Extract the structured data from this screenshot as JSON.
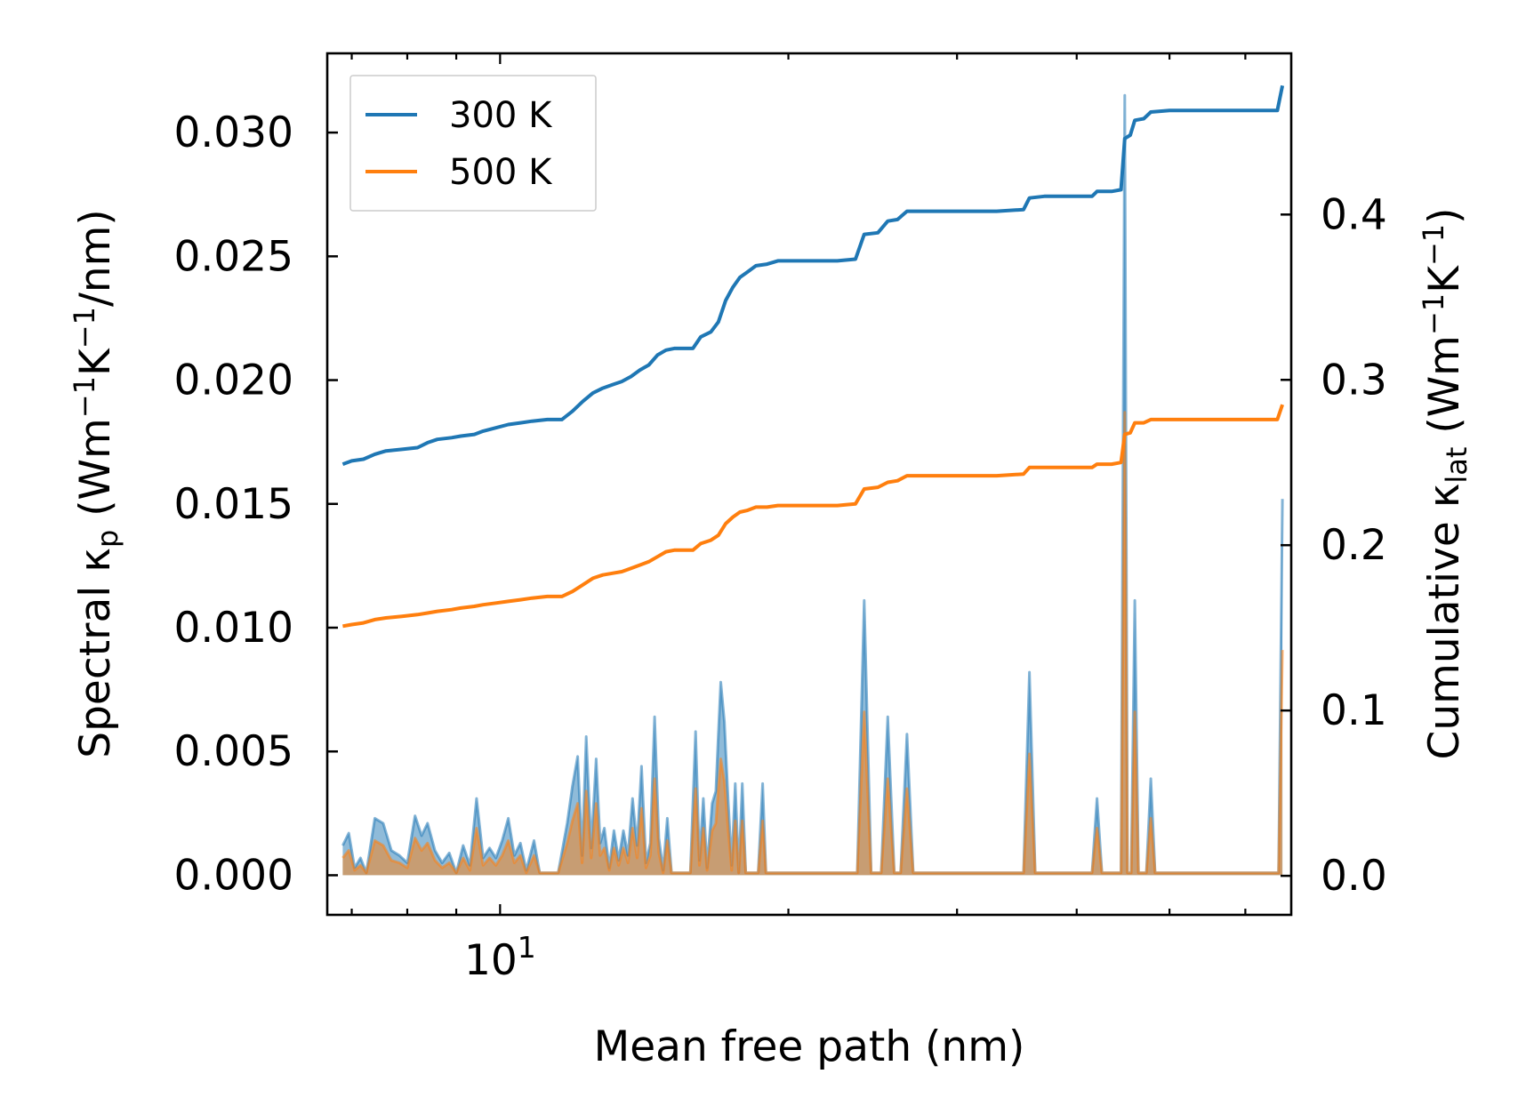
{
  "chart_data": {
    "type": "line",
    "xscale": "log",
    "xlim": [
      6.6,
      67
    ],
    "ylim": [
      -0.0016,
      0.0332
    ],
    "y2lim": [
      -0.0236,
      0.4975
    ],
    "xlabel": "Mean free path (nm)",
    "ylabel_parts": {
      "pre": "Spectral κ",
      "sub": "p",
      "mid": " (Wm",
      "sup1": "−1",
      "k": "K",
      "sup2": "−1",
      "post": "/nm)"
    },
    "y2label_parts": {
      "pre": "Cumulative κ",
      "sub": "lat",
      "mid": " (Wm",
      "sup1": "−1",
      "k": "K",
      "sup2": "−1",
      "post": ")"
    },
    "xtick_labels": [
      {
        "base": "10",
        "exp": "1",
        "value": 10
      }
    ],
    "yticks": [
      {
        "value": 0.0,
        "label": "0.000"
      },
      {
        "value": 0.005,
        "label": "0.005"
      },
      {
        "value": 0.01,
        "label": "0.010"
      },
      {
        "value": 0.015,
        "label": "0.015"
      },
      {
        "value": 0.02,
        "label": "0.020"
      },
      {
        "value": 0.025,
        "label": "0.025"
      },
      {
        "value": 0.03,
        "label": "0.030"
      }
    ],
    "y2ticks": [
      {
        "value": 0.0,
        "label": "0.0"
      },
      {
        "value": 0.1,
        "label": "0.1"
      },
      {
        "value": 0.2,
        "label": "0.2"
      },
      {
        "value": 0.3,
        "label": "0.3"
      },
      {
        "value": 0.4,
        "label": "0.4"
      }
    ],
    "legend": {
      "location": "upper-left",
      "entries": [
        {
          "label": "300 K",
          "color": "#1f77b4"
        },
        {
          "label": "500 K",
          "color": "#ff7f0e"
        }
      ]
    },
    "spectral_300K": [
      [
        6.85,
        0.0012
      ],
      [
        6.95,
        0.0017
      ],
      [
        7.05,
        0.0003
      ],
      [
        7.15,
        0.0007
      ],
      [
        7.25,
        0.0001
      ],
      [
        7.4,
        0.0023
      ],
      [
        7.55,
        0.0021
      ],
      [
        7.7,
        0.001
      ],
      [
        7.85,
        0.0008
      ],
      [
        8.0,
        0.0005
      ],
      [
        8.15,
        0.0024
      ],
      [
        8.28,
        0.0016
      ],
      [
        8.4,
        0.0021
      ],
      [
        8.55,
        0.001
      ],
      [
        8.7,
        0.0005
      ],
      [
        8.85,
        0.0009
      ],
      [
        9.0,
        0.0001
      ],
      [
        9.15,
        0.0012
      ],
      [
        9.3,
        0.0004
      ],
      [
        9.45,
        0.0031
      ],
      [
        9.6,
        0.0007
      ],
      [
        9.75,
        0.0011
      ],
      [
        9.9,
        0.0007
      ],
      [
        10.05,
        0.0014
      ],
      [
        10.2,
        0.0023
      ],
      [
        10.35,
        0.0008
      ],
      [
        10.5,
        0.0013
      ],
      [
        10.65,
        0.0002
      ],
      [
        10.85,
        0.0014
      ],
      [
        11.0,
        0.0001
      ],
      [
        11.5,
        0.0001
      ],
      [
        11.75,
        0.0021
      ],
      [
        11.9,
        0.0036
      ],
      [
        12.05,
        0.0048
      ],
      [
        12.18,
        0.0008
      ],
      [
        12.3,
        0.0056
      ],
      [
        12.45,
        0.0011
      ],
      [
        12.6,
        0.0047
      ],
      [
        12.72,
        0.0013
      ],
      [
        12.85,
        0.0019
      ],
      [
        13.0,
        0.0003
      ],
      [
        13.15,
        0.0018
      ],
      [
        13.3,
        0.0006
      ],
      [
        13.45,
        0.0018
      ],
      [
        13.6,
        0.0008
      ],
      [
        13.75,
        0.0031
      ],
      [
        13.9,
        0.0012
      ],
      [
        14.05,
        0.0044
      ],
      [
        14.2,
        0.0005
      ],
      [
        14.35,
        0.0013
      ],
      [
        14.5,
        0.0064
      ],
      [
        14.65,
        0.0015
      ],
      [
        14.8,
        0.0002
      ],
      [
        14.95,
        0.0023
      ],
      [
        15.1,
        0.0001
      ],
      [
        15.8,
        0.0001
      ],
      [
        16.0,
        0.0058
      ],
      [
        16.15,
        0.0006
      ],
      [
        16.3,
        0.0031
      ],
      [
        16.45,
        0.0003
      ],
      [
        16.65,
        0.0029
      ],
      [
        16.8,
        0.0034
      ],
      [
        16.9,
        0.0057
      ],
      [
        17.0,
        0.0078
      ],
      [
        17.15,
        0.0062
      ],
      [
        17.3,
        0.0031
      ],
      [
        17.45,
        0.0004
      ],
      [
        17.6,
        0.0037
      ],
      [
        17.75,
        0.0001
      ],
      [
        17.9,
        0.0037
      ],
      [
        18.05,
        0.0001
      ],
      [
        18.6,
        0.0001
      ],
      [
        18.8,
        0.0037
      ],
      [
        18.95,
        0.0001
      ],
      [
        23.6,
        0.0001
      ],
      [
        24.0,
        0.0111
      ],
      [
        24.4,
        0.0001
      ],
      [
        25.0,
        0.0001
      ],
      [
        25.4,
        0.0064
      ],
      [
        25.8,
        0.0001
      ],
      [
        26.2,
        0.0001
      ],
      [
        26.6,
        0.0057
      ],
      [
        27.0,
        0.0001
      ],
      [
        35.2,
        0.0001
      ],
      [
        35.7,
        0.0082
      ],
      [
        36.2,
        0.0001
      ],
      [
        41.5,
        0.0001
      ],
      [
        42.0,
        0.0031
      ],
      [
        42.5,
        0.0001
      ],
      [
        44.5,
        0.0001
      ],
      [
        44.9,
        0.0315
      ],
      [
        45.2,
        0.0001
      ],
      [
        45.6,
        0.0001
      ],
      [
        46.0,
        0.0111
      ],
      [
        46.4,
        0.0001
      ],
      [
        47.3,
        0.0001
      ],
      [
        47.8,
        0.0039
      ],
      [
        48.3,
        0.0001
      ],
      [
        65.0,
        0.0001
      ],
      [
        65.6,
        0.0152
      ]
    ],
    "spectral_500K": [
      [
        6.85,
        0.0007
      ],
      [
        6.95,
        0.001
      ],
      [
        7.05,
        0.0002
      ],
      [
        7.15,
        0.0004
      ],
      [
        7.25,
        0.0001
      ],
      [
        7.4,
        0.0014
      ],
      [
        7.55,
        0.0012
      ],
      [
        7.7,
        0.0006
      ],
      [
        7.85,
        0.0005
      ],
      [
        8.0,
        0.0003
      ],
      [
        8.15,
        0.0015
      ],
      [
        8.28,
        0.001
      ],
      [
        8.4,
        0.0013
      ],
      [
        8.55,
        0.0006
      ],
      [
        8.7,
        0.0003
      ],
      [
        8.85,
        0.0005
      ],
      [
        9.0,
        0.0001
      ],
      [
        9.15,
        0.0007
      ],
      [
        9.3,
        0.0002
      ],
      [
        9.45,
        0.0019
      ],
      [
        9.6,
        0.0004
      ],
      [
        9.75,
        0.0007
      ],
      [
        9.9,
        0.0004
      ],
      [
        10.05,
        0.0008
      ],
      [
        10.2,
        0.0014
      ],
      [
        10.35,
        0.0005
      ],
      [
        10.5,
        0.0008
      ],
      [
        10.65,
        0.0001
      ],
      [
        10.85,
        0.0008
      ],
      [
        11.0,
        0.0001
      ],
      [
        11.5,
        0.0001
      ],
      [
        11.75,
        0.0013
      ],
      [
        11.9,
        0.0022
      ],
      [
        12.05,
        0.0029
      ],
      [
        12.18,
        0.0005
      ],
      [
        12.3,
        0.0034
      ],
      [
        12.45,
        0.0007
      ],
      [
        12.6,
        0.0029
      ],
      [
        12.72,
        0.0008
      ],
      [
        12.85,
        0.0011
      ],
      [
        13.0,
        0.0002
      ],
      [
        13.15,
        0.0011
      ],
      [
        13.3,
        0.0004
      ],
      [
        13.45,
        0.0011
      ],
      [
        13.6,
        0.0005
      ],
      [
        13.75,
        0.0019
      ],
      [
        13.9,
        0.0007
      ],
      [
        14.05,
        0.0027
      ],
      [
        14.2,
        0.0003
      ],
      [
        14.35,
        0.0008
      ],
      [
        14.5,
        0.0039
      ],
      [
        14.65,
        0.0009
      ],
      [
        14.8,
        0.0001
      ],
      [
        14.95,
        0.0014
      ],
      [
        15.1,
        0.0001
      ],
      [
        15.8,
        0.0001
      ],
      [
        16.0,
        0.0035
      ],
      [
        16.15,
        0.0004
      ],
      [
        16.3,
        0.0019
      ],
      [
        16.45,
        0.0002
      ],
      [
        16.65,
        0.0018
      ],
      [
        16.8,
        0.0021
      ],
      [
        16.9,
        0.0035
      ],
      [
        17.0,
        0.0047
      ],
      [
        17.15,
        0.0038
      ],
      [
        17.3,
        0.0019
      ],
      [
        17.45,
        0.0002
      ],
      [
        17.6,
        0.0022
      ],
      [
        17.75,
        0.0001
      ],
      [
        17.9,
        0.0022
      ],
      [
        18.05,
        0.0001
      ],
      [
        18.6,
        0.0001
      ],
      [
        18.8,
        0.0022
      ],
      [
        18.95,
        0.0001
      ],
      [
        23.6,
        0.0001
      ],
      [
        24.0,
        0.0066
      ],
      [
        24.4,
        0.0001
      ],
      [
        25.0,
        0.0001
      ],
      [
        25.4,
        0.0039
      ],
      [
        25.8,
        0.0001
      ],
      [
        26.2,
        0.0001
      ],
      [
        26.6,
        0.0035
      ],
      [
        27.0,
        0.0001
      ],
      [
        35.2,
        0.0001
      ],
      [
        35.7,
        0.0049
      ],
      [
        36.2,
        0.0001
      ],
      [
        41.5,
        0.0001
      ],
      [
        42.0,
        0.0019
      ],
      [
        42.5,
        0.0001
      ],
      [
        44.5,
        0.0001
      ],
      [
        44.9,
        0.0187
      ],
      [
        45.2,
        0.0001
      ],
      [
        45.6,
        0.0001
      ],
      [
        46.0,
        0.0066
      ],
      [
        46.4,
        0.0001
      ],
      [
        47.3,
        0.0001
      ],
      [
        47.8,
        0.0023
      ],
      [
        48.3,
        0.0001
      ],
      [
        65.0,
        0.0001
      ],
      [
        65.6,
        0.0091
      ]
    ],
    "cumulative_300K": [
      [
        6.85,
        0.249
      ],
      [
        7.0,
        0.251
      ],
      [
        7.2,
        0.252
      ],
      [
        7.4,
        0.255
      ],
      [
        7.6,
        0.257
      ],
      [
        7.9,
        0.258
      ],
      [
        8.2,
        0.259
      ],
      [
        8.4,
        0.262
      ],
      [
        8.6,
        0.264
      ],
      [
        8.9,
        0.265
      ],
      [
        9.1,
        0.266
      ],
      [
        9.4,
        0.267
      ],
      [
        9.6,
        0.269
      ],
      [
        9.9,
        0.271
      ],
      [
        10.2,
        0.273
      ],
      [
        10.5,
        0.274
      ],
      [
        10.8,
        0.275
      ],
      [
        11.2,
        0.276
      ],
      [
        11.6,
        0.276
      ],
      [
        11.9,
        0.281
      ],
      [
        12.2,
        0.287
      ],
      [
        12.5,
        0.292
      ],
      [
        12.8,
        0.295
      ],
      [
        13.1,
        0.297
      ],
      [
        13.4,
        0.299
      ],
      [
        13.7,
        0.302
      ],
      [
        14.0,
        0.306
      ],
      [
        14.3,
        0.309
      ],
      [
        14.6,
        0.315
      ],
      [
        14.9,
        0.318
      ],
      [
        15.2,
        0.319
      ],
      [
        15.6,
        0.319
      ],
      [
        15.9,
        0.319
      ],
      [
        16.2,
        0.326
      ],
      [
        16.6,
        0.329
      ],
      [
        16.9,
        0.335
      ],
      [
        17.2,
        0.348
      ],
      [
        17.5,
        0.356
      ],
      [
        17.8,
        0.362
      ],
      [
        18.1,
        0.365
      ],
      [
        18.5,
        0.369
      ],
      [
        19.0,
        0.37
      ],
      [
        19.5,
        0.372
      ],
      [
        20.5,
        0.372
      ],
      [
        21.5,
        0.372
      ],
      [
        22.5,
        0.372
      ],
      [
        23.5,
        0.373
      ],
      [
        24.0,
        0.388
      ],
      [
        24.8,
        0.389
      ],
      [
        25.4,
        0.396
      ],
      [
        26.0,
        0.397
      ],
      [
        26.6,
        0.402
      ],
      [
        28.0,
        0.402
      ],
      [
        30.0,
        0.402
      ],
      [
        33.0,
        0.402
      ],
      [
        35.2,
        0.403
      ],
      [
        35.7,
        0.41
      ],
      [
        37.0,
        0.411
      ],
      [
        39.0,
        0.411
      ],
      [
        41.5,
        0.411
      ],
      [
        42.0,
        0.414
      ],
      [
        43.5,
        0.414
      ],
      [
        44.5,
        0.415
      ],
      [
        44.9,
        0.446
      ],
      [
        45.5,
        0.448
      ],
      [
        46.0,
        0.457
      ],
      [
        47.0,
        0.458
      ],
      [
        47.8,
        0.462
      ],
      [
        50.0,
        0.463
      ],
      [
        55.0,
        0.463
      ],
      [
        60.0,
        0.463
      ],
      [
        64.8,
        0.463
      ],
      [
        65.6,
        0.478
      ]
    ],
    "cumulative_500K": [
      [
        6.85,
        0.151
      ],
      [
        7.0,
        0.152
      ],
      [
        7.2,
        0.153
      ],
      [
        7.4,
        0.155
      ],
      [
        7.6,
        0.156
      ],
      [
        7.9,
        0.157
      ],
      [
        8.2,
        0.158
      ],
      [
        8.4,
        0.159
      ],
      [
        8.6,
        0.16
      ],
      [
        8.9,
        0.161
      ],
      [
        9.1,
        0.162
      ],
      [
        9.4,
        0.163
      ],
      [
        9.6,
        0.164
      ],
      [
        9.9,
        0.165
      ],
      [
        10.2,
        0.166
      ],
      [
        10.5,
        0.167
      ],
      [
        10.8,
        0.168
      ],
      [
        11.2,
        0.169
      ],
      [
        11.6,
        0.169
      ],
      [
        11.9,
        0.172
      ],
      [
        12.2,
        0.176
      ],
      [
        12.5,
        0.18
      ],
      [
        12.8,
        0.182
      ],
      [
        13.1,
        0.183
      ],
      [
        13.4,
        0.184
      ],
      [
        13.7,
        0.186
      ],
      [
        14.0,
        0.188
      ],
      [
        14.3,
        0.19
      ],
      [
        14.6,
        0.193
      ],
      [
        14.9,
        0.196
      ],
      [
        15.2,
        0.197
      ],
      [
        15.6,
        0.197
      ],
      [
        15.9,
        0.197
      ],
      [
        16.2,
        0.201
      ],
      [
        16.6,
        0.203
      ],
      [
        16.9,
        0.206
      ],
      [
        17.2,
        0.213
      ],
      [
        17.5,
        0.217
      ],
      [
        17.8,
        0.22
      ],
      [
        18.1,
        0.221
      ],
      [
        18.5,
        0.223
      ],
      [
        19.0,
        0.223
      ],
      [
        19.5,
        0.224
      ],
      [
        20.5,
        0.224
      ],
      [
        21.5,
        0.224
      ],
      [
        22.5,
        0.224
      ],
      [
        23.5,
        0.225
      ],
      [
        24.0,
        0.234
      ],
      [
        24.8,
        0.235
      ],
      [
        25.4,
        0.238
      ],
      [
        26.0,
        0.239
      ],
      [
        26.6,
        0.242
      ],
      [
        28.0,
        0.242
      ],
      [
        30.0,
        0.242
      ],
      [
        33.0,
        0.242
      ],
      [
        35.2,
        0.243
      ],
      [
        35.7,
        0.247
      ],
      [
        37.0,
        0.247
      ],
      [
        39.0,
        0.247
      ],
      [
        41.5,
        0.247
      ],
      [
        42.0,
        0.249
      ],
      [
        43.5,
        0.249
      ],
      [
        44.5,
        0.25
      ],
      [
        44.9,
        0.267
      ],
      [
        45.5,
        0.268
      ],
      [
        46.0,
        0.274
      ],
      [
        47.0,
        0.274
      ],
      [
        47.8,
        0.276
      ],
      [
        50.0,
        0.276
      ],
      [
        55.0,
        0.276
      ],
      [
        60.0,
        0.276
      ],
      [
        64.8,
        0.276
      ],
      [
        65.6,
        0.285
      ]
    ]
  }
}
